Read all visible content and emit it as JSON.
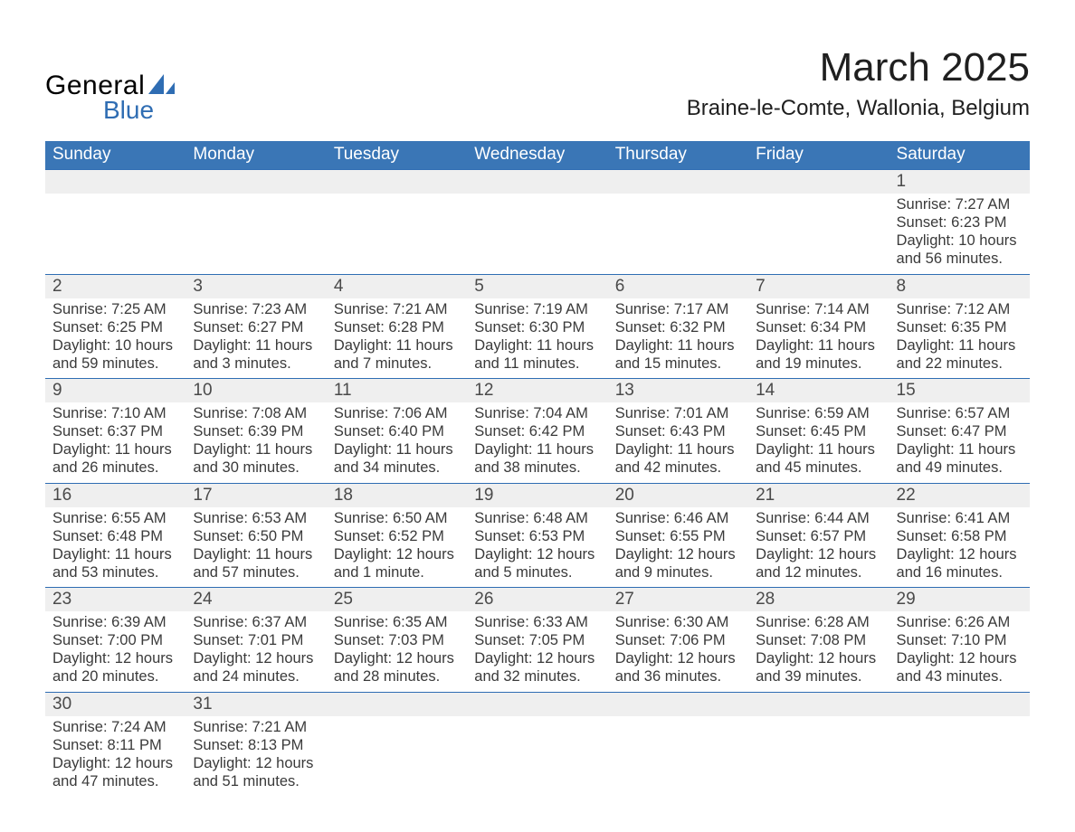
{
  "logo": {
    "word1": "General",
    "word2": "Blue",
    "triangle_color": "#2f6db3"
  },
  "title": "March 2025",
  "location": "Braine-le-Comte, Wallonia, Belgium",
  "colors": {
    "header_bg": "#3a76b6",
    "header_text": "#ffffff",
    "row_stripe": "#efefef",
    "rule": "#2f6db3",
    "text": "#3a3a3a"
  },
  "weekdays": [
    "Sunday",
    "Monday",
    "Tuesday",
    "Wednesday",
    "Thursday",
    "Friday",
    "Saturday"
  ],
  "weeks": [
    [
      null,
      null,
      null,
      null,
      null,
      null,
      {
        "d": "1",
        "sr": "Sunrise: 7:27 AM",
        "ss": "Sunset: 6:23 PM",
        "dl1": "Daylight: 10 hours",
        "dl2": "and 56 minutes."
      }
    ],
    [
      {
        "d": "2",
        "sr": "Sunrise: 7:25 AM",
        "ss": "Sunset: 6:25 PM",
        "dl1": "Daylight: 10 hours",
        "dl2": "and 59 minutes."
      },
      {
        "d": "3",
        "sr": "Sunrise: 7:23 AM",
        "ss": "Sunset: 6:27 PM",
        "dl1": "Daylight: 11 hours",
        "dl2": "and 3 minutes."
      },
      {
        "d": "4",
        "sr": "Sunrise: 7:21 AM",
        "ss": "Sunset: 6:28 PM",
        "dl1": "Daylight: 11 hours",
        "dl2": "and 7 minutes."
      },
      {
        "d": "5",
        "sr": "Sunrise: 7:19 AM",
        "ss": "Sunset: 6:30 PM",
        "dl1": "Daylight: 11 hours",
        "dl2": "and 11 minutes."
      },
      {
        "d": "6",
        "sr": "Sunrise: 7:17 AM",
        "ss": "Sunset: 6:32 PM",
        "dl1": "Daylight: 11 hours",
        "dl2": "and 15 minutes."
      },
      {
        "d": "7",
        "sr": "Sunrise: 7:14 AM",
        "ss": "Sunset: 6:34 PM",
        "dl1": "Daylight: 11 hours",
        "dl2": "and 19 minutes."
      },
      {
        "d": "8",
        "sr": "Sunrise: 7:12 AM",
        "ss": "Sunset: 6:35 PM",
        "dl1": "Daylight: 11 hours",
        "dl2": "and 22 minutes."
      }
    ],
    [
      {
        "d": "9",
        "sr": "Sunrise: 7:10 AM",
        "ss": "Sunset: 6:37 PM",
        "dl1": "Daylight: 11 hours",
        "dl2": "and 26 minutes."
      },
      {
        "d": "10",
        "sr": "Sunrise: 7:08 AM",
        "ss": "Sunset: 6:39 PM",
        "dl1": "Daylight: 11 hours",
        "dl2": "and 30 minutes."
      },
      {
        "d": "11",
        "sr": "Sunrise: 7:06 AM",
        "ss": "Sunset: 6:40 PM",
        "dl1": "Daylight: 11 hours",
        "dl2": "and 34 minutes."
      },
      {
        "d": "12",
        "sr": "Sunrise: 7:04 AM",
        "ss": "Sunset: 6:42 PM",
        "dl1": "Daylight: 11 hours",
        "dl2": "and 38 minutes."
      },
      {
        "d": "13",
        "sr": "Sunrise: 7:01 AM",
        "ss": "Sunset: 6:43 PM",
        "dl1": "Daylight: 11 hours",
        "dl2": "and 42 minutes."
      },
      {
        "d": "14",
        "sr": "Sunrise: 6:59 AM",
        "ss": "Sunset: 6:45 PM",
        "dl1": "Daylight: 11 hours",
        "dl2": "and 45 minutes."
      },
      {
        "d": "15",
        "sr": "Sunrise: 6:57 AM",
        "ss": "Sunset: 6:47 PM",
        "dl1": "Daylight: 11 hours",
        "dl2": "and 49 minutes."
      }
    ],
    [
      {
        "d": "16",
        "sr": "Sunrise: 6:55 AM",
        "ss": "Sunset: 6:48 PM",
        "dl1": "Daylight: 11 hours",
        "dl2": "and 53 minutes."
      },
      {
        "d": "17",
        "sr": "Sunrise: 6:53 AM",
        "ss": "Sunset: 6:50 PM",
        "dl1": "Daylight: 11 hours",
        "dl2": "and 57 minutes."
      },
      {
        "d": "18",
        "sr": "Sunrise: 6:50 AM",
        "ss": "Sunset: 6:52 PM",
        "dl1": "Daylight: 12 hours",
        "dl2": "and 1 minute."
      },
      {
        "d": "19",
        "sr": "Sunrise: 6:48 AM",
        "ss": "Sunset: 6:53 PM",
        "dl1": "Daylight: 12 hours",
        "dl2": "and 5 minutes."
      },
      {
        "d": "20",
        "sr": "Sunrise: 6:46 AM",
        "ss": "Sunset: 6:55 PM",
        "dl1": "Daylight: 12 hours",
        "dl2": "and 9 minutes."
      },
      {
        "d": "21",
        "sr": "Sunrise: 6:44 AM",
        "ss": "Sunset: 6:57 PM",
        "dl1": "Daylight: 12 hours",
        "dl2": "and 12 minutes."
      },
      {
        "d": "22",
        "sr": "Sunrise: 6:41 AM",
        "ss": "Sunset: 6:58 PM",
        "dl1": "Daylight: 12 hours",
        "dl2": "and 16 minutes."
      }
    ],
    [
      {
        "d": "23",
        "sr": "Sunrise: 6:39 AM",
        "ss": "Sunset: 7:00 PM",
        "dl1": "Daylight: 12 hours",
        "dl2": "and 20 minutes."
      },
      {
        "d": "24",
        "sr": "Sunrise: 6:37 AM",
        "ss": "Sunset: 7:01 PM",
        "dl1": "Daylight: 12 hours",
        "dl2": "and 24 minutes."
      },
      {
        "d": "25",
        "sr": "Sunrise: 6:35 AM",
        "ss": "Sunset: 7:03 PM",
        "dl1": "Daylight: 12 hours",
        "dl2": "and 28 minutes."
      },
      {
        "d": "26",
        "sr": "Sunrise: 6:33 AM",
        "ss": "Sunset: 7:05 PM",
        "dl1": "Daylight: 12 hours",
        "dl2": "and 32 minutes."
      },
      {
        "d": "27",
        "sr": "Sunrise: 6:30 AM",
        "ss": "Sunset: 7:06 PM",
        "dl1": "Daylight: 12 hours",
        "dl2": "and 36 minutes."
      },
      {
        "d": "28",
        "sr": "Sunrise: 6:28 AM",
        "ss": "Sunset: 7:08 PM",
        "dl1": "Daylight: 12 hours",
        "dl2": "and 39 minutes."
      },
      {
        "d": "29",
        "sr": "Sunrise: 6:26 AM",
        "ss": "Sunset: 7:10 PM",
        "dl1": "Daylight: 12 hours",
        "dl2": "and 43 minutes."
      }
    ],
    [
      {
        "d": "30",
        "sr": "Sunrise: 7:24 AM",
        "ss": "Sunset: 8:11 PM",
        "dl1": "Daylight: 12 hours",
        "dl2": "and 47 minutes."
      },
      {
        "d": "31",
        "sr": "Sunrise: 7:21 AM",
        "ss": "Sunset: 8:13 PM",
        "dl1": "Daylight: 12 hours",
        "dl2": "and 51 minutes."
      },
      null,
      null,
      null,
      null,
      null
    ]
  ]
}
